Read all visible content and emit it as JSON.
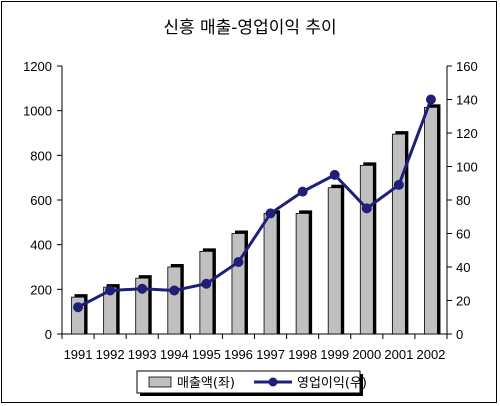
{
  "chart_data": {
    "type": "bar",
    "title": "신흥 매출-영업이익 추이",
    "categories": [
      "1991",
      "1992",
      "1993",
      "1994",
      "1995",
      "1996",
      "1997",
      "1998",
      "1999",
      "2000",
      "2001",
      "2002"
    ],
    "series": [
      {
        "name": "매출액(좌)",
        "type": "bar",
        "axis": "left",
        "color": "#c0c0c0",
        "values": [
          165,
          210,
          250,
          300,
          370,
          450,
          540,
          540,
          655,
          755,
          895,
          1015
        ]
      },
      {
        "name": "영업이익(우)",
        "type": "line",
        "axis": "right",
        "color": "#1f1f7a",
        "values": [
          16,
          26,
          27,
          26,
          30,
          43,
          72,
          85,
          95,
          75,
          89,
          140
        ]
      }
    ],
    "y_left": {
      "min": 0,
      "max": 1200,
      "ticks": [
        "0",
        "200",
        "400",
        "600",
        "800",
        "1000",
        "1200"
      ]
    },
    "y_right": {
      "min": 0,
      "max": 160,
      "ticks": [
        "0",
        "20",
        "40",
        "60",
        "80",
        "100",
        "120",
        "140",
        "160"
      ]
    },
    "grid": false,
    "legend_position": "bottom"
  }
}
